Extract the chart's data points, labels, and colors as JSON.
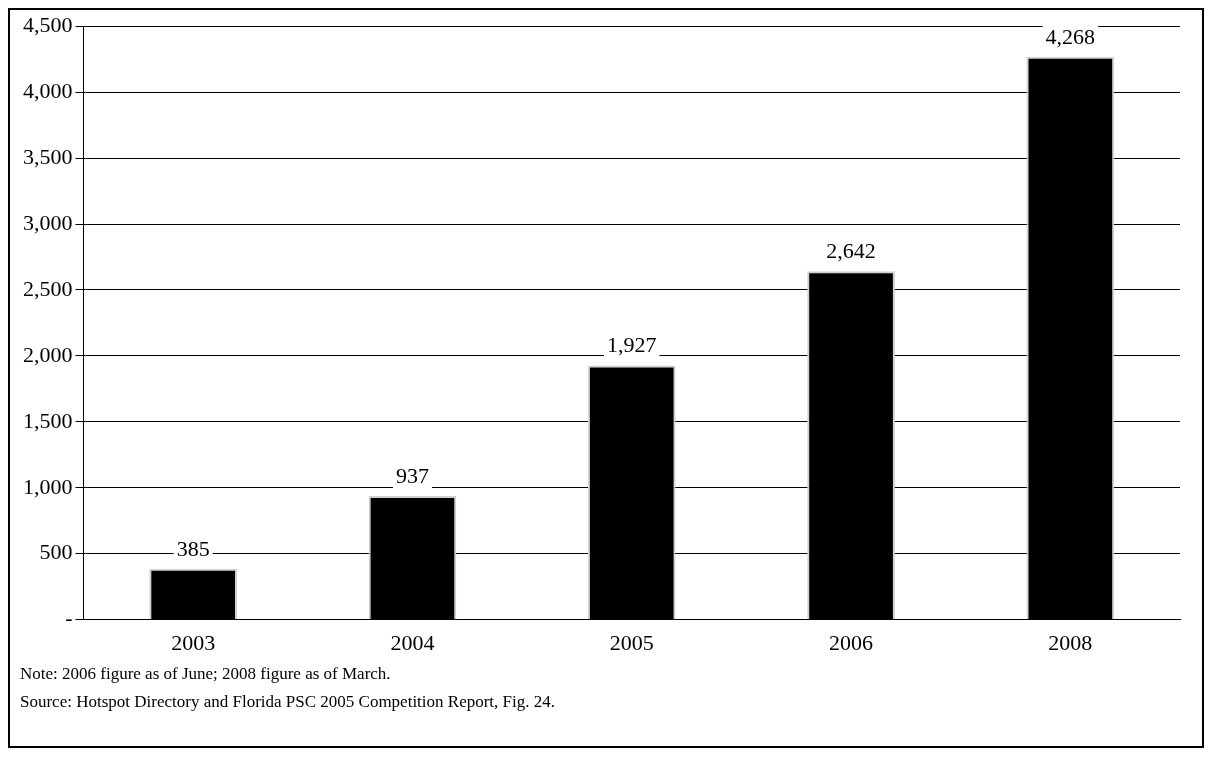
{
  "chart_data": {
    "type": "bar",
    "categories": [
      "2003",
      "2004",
      "2005",
      "2006",
      "2008"
    ],
    "values": [
      385,
      937,
      1927,
      2642,
      4268
    ],
    "value_labels": [
      "385",
      "937",
      "1,927",
      "2,642",
      "4,268"
    ],
    "color": "#000000",
    "ylim": [
      0,
      4500
    ],
    "yticks": [
      {
        "value": 0,
        "label": "-"
      },
      {
        "value": 500,
        "label": "500"
      },
      {
        "value": 1000,
        "label": "1,000"
      },
      {
        "value": 1500,
        "label": "1,500"
      },
      {
        "value": 2000,
        "label": "2,000"
      },
      {
        "value": 2500,
        "label": "2,500"
      },
      {
        "value": 3000,
        "label": "3,000"
      },
      {
        "value": 3500,
        "label": "3,500"
      },
      {
        "value": 4000,
        "label": "4,000"
      },
      {
        "value": 4500,
        "label": "4,500"
      }
    ],
    "grid": "y",
    "legend": false,
    "annotations": [
      "Note: 2006 figure as of June; 2008 figure as of March.",
      "Source: Hotspot Directory and Florida PSC 2005 Competition Report, Fig. 24."
    ]
  }
}
